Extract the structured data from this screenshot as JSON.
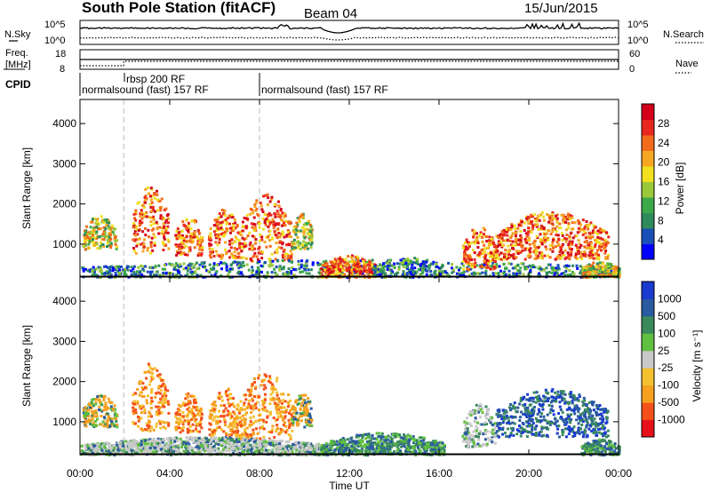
{
  "header": {
    "title": "South Pole Station (fitACF)",
    "beam": "Beam 04",
    "date": "15/Jun/2015"
  },
  "chart_data": [
    {
      "type": "line",
      "name": "noise-panel",
      "left_label": "N.Sky",
      "right_label": "N.Search",
      "left_ticks": [
        "10^5",
        "10^0"
      ],
      "right_ticks": [
        "10^5",
        "10^0"
      ]
    },
    {
      "type": "line",
      "name": "frequency-panel",
      "left_label_lines": [
        "Freq.",
        "[MHz]"
      ],
      "right_label": "Nave",
      "left_ticks": [
        "18",
        "8"
      ],
      "right_ticks": [
        "60",
        "0"
      ]
    },
    {
      "type": "table",
      "name": "cpid-panel",
      "label": "CPID",
      "segments": [
        {
          "text": "normalsound (fast) 157 RF",
          "start_hour": 0.0
        },
        {
          "text": "rbsp 200 RF",
          "start_hour": 1.95
        },
        {
          "text": "normalsound (fast) 157 RF",
          "start_hour": 8.0
        }
      ]
    },
    {
      "type": "heatmap",
      "name": "power-panel",
      "ylabel": "Slant Range [km]",
      "y_ticks": [
        1000,
        2000,
        3000,
        4000
      ],
      "ylim": [
        180,
        4600
      ],
      "xlim": [
        0,
        24
      ],
      "colorbar_label": "Power [dB]",
      "colorbar_ticks": [
        "4",
        "8",
        "12",
        "16",
        "20",
        "24",
        "28"
      ],
      "colorbar_colors": [
        "#0000ff",
        "#1a4fb8",
        "#2f8a5c",
        "#3ba84a",
        "#9ac83a",
        "#f0e020",
        "#f5a623",
        "#f26a1b",
        "#e8281e",
        "#d4001a"
      ],
      "dashed_lines_hours": [
        1.95,
        8.0
      ],
      "echo_regions": [
        {
          "x": [
            0.1,
            1.6
          ],
          "y": [
            900,
            1750
          ],
          "level": "medium"
        },
        {
          "x": [
            2.3,
            3.9
          ],
          "y": [
            800,
            2500
          ],
          "level": "high"
        },
        {
          "x": [
            4.2,
            5.4
          ],
          "y": [
            750,
            1750
          ],
          "level": "high"
        },
        {
          "x": [
            5.7,
            7.1
          ],
          "y": [
            650,
            1900
          ],
          "level": "high"
        },
        {
          "x": [
            7.1,
            9.4
          ],
          "y": [
            600,
            2300
          ],
          "level": "high"
        },
        {
          "x": [
            9.4,
            10.3
          ],
          "y": [
            900,
            1800
          ],
          "level": "medium"
        },
        {
          "x": [
            0.0,
            24.0
          ],
          "y": [
            200,
            650
          ],
          "level": "low"
        },
        {
          "x": [
            10.7,
            13.2
          ],
          "y": [
            200,
            750
          ],
          "level": "high"
        },
        {
          "x": [
            13.0,
            16.2
          ],
          "y": [
            200,
            700
          ],
          "level": "low"
        },
        {
          "x": [
            17.0,
            18.5
          ],
          "y": [
            400,
            1500
          ],
          "level": "high"
        },
        {
          "x": [
            18.5,
            23.5
          ],
          "y": [
            650,
            1850
          ],
          "level": "high"
        },
        {
          "x": [
            22.3,
            24.0
          ],
          "y": [
            200,
            600
          ],
          "level": "medium"
        }
      ]
    },
    {
      "type": "heatmap",
      "name": "velocity-panel",
      "ylabel": "Slant Range [km]",
      "y_ticks": [
        1000,
        2000,
        3000,
        4000
      ],
      "ylim": [
        180,
        4600
      ],
      "xlim": [
        0,
        24
      ],
      "xlabel": "Time UT",
      "x_tick_labels": [
        "00:00",
        "04:00",
        "08:00",
        "12:00",
        "16:00",
        "20:00",
        "00:00"
      ],
      "x_tick_hours": [
        0,
        4,
        8,
        12,
        16,
        20,
        24
      ],
      "colorbar_label": "Velocity [m s⁻¹]",
      "colorbar_ticks": [
        "-1000",
        "-500",
        "-100",
        "-25",
        "25",
        "100",
        "500",
        "1000"
      ],
      "colorbar_colors": [
        "#e8101a",
        "#f5501a",
        "#f5a020",
        "#f5c030",
        "#c8c8c8",
        "#60c040",
        "#3a8a5c",
        "#2a5aa0",
        "#1a3ad0"
      ],
      "dashed_lines_hours": [
        1.95,
        8.0
      ],
      "echo_regions": [
        {
          "x": [
            0.1,
            1.6
          ],
          "y": [
            900,
            1750
          ],
          "level": "mixed-neg"
        },
        {
          "x": [
            2.3,
            3.9
          ],
          "y": [
            800,
            2500
          ],
          "level": "neg"
        },
        {
          "x": [
            4.2,
            5.4
          ],
          "y": [
            750,
            1750
          ],
          "level": "neg"
        },
        {
          "x": [
            5.7,
            7.1
          ],
          "y": [
            650,
            1900
          ],
          "level": "neg"
        },
        {
          "x": [
            7.1,
            9.4
          ],
          "y": [
            600,
            2300
          ],
          "level": "neg"
        },
        {
          "x": [
            9.4,
            10.3
          ],
          "y": [
            900,
            1800
          ],
          "level": "mixed-neg"
        },
        {
          "x": [
            0.0,
            11.0
          ],
          "y": [
            200,
            650
          ],
          "level": "mixed-pos"
        },
        {
          "x": [
            10.7,
            16.2
          ],
          "y": [
            200,
            750
          ],
          "level": "pos"
        },
        {
          "x": [
            17.0,
            18.5
          ],
          "y": [
            400,
            1500
          ],
          "level": "mixed-pos"
        },
        {
          "x": [
            18.5,
            23.5
          ],
          "y": [
            650,
            1850
          ],
          "level": "strong-pos"
        },
        {
          "x": [
            22.3,
            24.0
          ],
          "y": [
            200,
            600
          ],
          "level": "pos"
        }
      ]
    }
  ]
}
